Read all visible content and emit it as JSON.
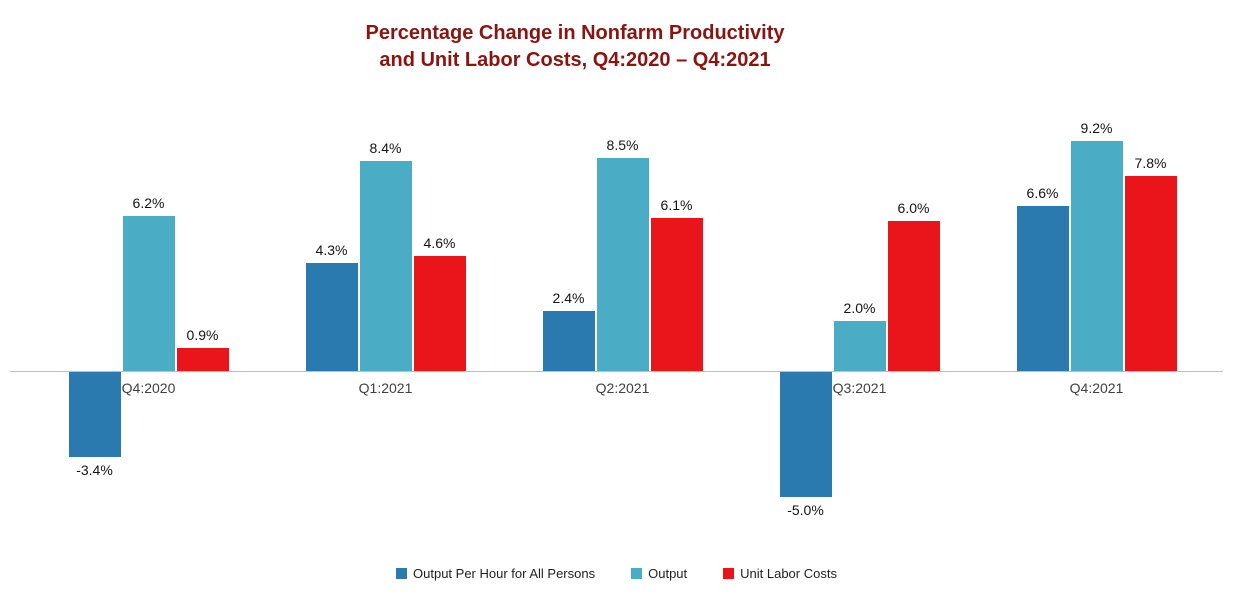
{
  "title": {
    "line1": "Percentage Change in Nonfarm Productivity",
    "line2": "and Unit Labor Costs, Q4:2020 – Q4:2021",
    "color": "#8b1410"
  },
  "chart_data": {
    "type": "bar",
    "title": "Percentage Change in Nonfarm Productivity and Unit Labor Costs, Q4:2020 – Q4:2021",
    "categories": [
      "Q4:2020",
      "Q1:2021",
      "Q2:2021",
      "Q3:2021",
      "Q4:2021"
    ],
    "series": [
      {
        "name": "Output Per Hour for All Persons",
        "color": "#2a7ab0",
        "values": [
          -3.4,
          4.3,
          2.4,
          -5.0,
          6.6
        ]
      },
      {
        "name": "Output",
        "color": "#4bacc6",
        "values": [
          6.2,
          8.4,
          8.5,
          2.0,
          9.2
        ]
      },
      {
        "name": "Unit Labor Costs",
        "color": "#ea151b",
        "values": [
          0.9,
          4.6,
          6.1,
          6.0,
          7.8
        ]
      }
    ],
    "xlabel": "",
    "ylabel": "",
    "ylim": [
      -6,
      10
    ],
    "data_labels": true,
    "data_label_format": "0.0%",
    "legend_position": "bottom",
    "grid": false,
    "axis_line_color": "#bfbfbf"
  }
}
